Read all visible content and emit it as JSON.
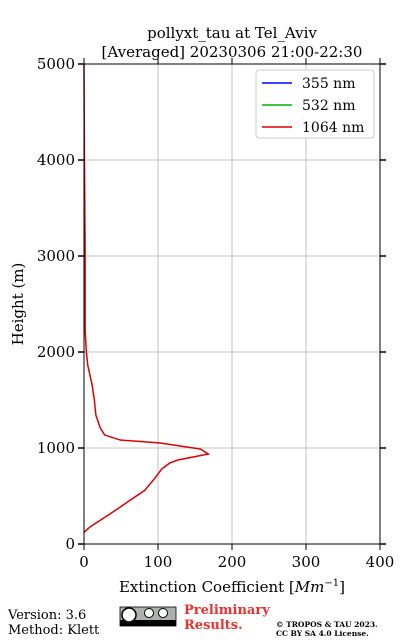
{
  "chart_data": {
    "type": "profile",
    "title": [
      "pollyxt_tau at Tel_Aviv",
      "[Averaged] 20230306 21:00-22:30"
    ],
    "xlabel": [
      "Extinction Coefficient [",
      "Mm",
      "−1",
      "]"
    ],
    "ylabel": "Height (m)",
    "y": [
      120,
      177,
      312,
      454,
      558,
      688,
      781,
      844,
      875,
      938,
      990,
      1052,
      1083,
      1135,
      1208,
      1344,
      1500,
      1656,
      1865,
      2020,
      2230,
      3060,
      4100,
      5000
    ],
    "series": [
      {
        "name": "355 nm",
        "color": "#0000ff",
        "values": [
          null,
          null,
          null,
          null,
          null,
          null,
          null,
          null,
          null,
          null,
          null,
          null,
          null,
          null,
          null,
          null,
          null,
          null,
          null,
          null,
          null,
          null,
          null,
          null
        ]
      },
      {
        "name": "532 nm",
        "color": "#00b400",
        "values": [
          null,
          null,
          null,
          null,
          null,
          null,
          null,
          null,
          null,
          null,
          null,
          null,
          null,
          null,
          null,
          null,
          null,
          null,
          null,
          null,
          null,
          null,
          null,
          null
        ]
      },
      {
        "name": "1064 nm",
        "color": "#e00000",
        "values": [
          0,
          8,
          35,
          62,
          82,
          96,
          105,
          116,
          127,
          168,
          157,
          103,
          49,
          28,
          22,
          16,
          14,
          11,
          5,
          3,
          1.5,
          1.5,
          0.5,
          0
        ]
      }
    ],
    "xlim": [
      0,
      400
    ],
    "xticks": [
      0,
      100,
      200,
      300,
      400
    ],
    "ylim": [
      0,
      5000
    ],
    "yticks": [
      0,
      1000,
      2000,
      3000,
      4000,
      5000
    ],
    "grid": true,
    "legend": "upper right",
    "footer": {
      "version": "Version: 3.6",
      "method": "Method: Klett",
      "preliminary": [
        "Preliminary",
        "Results."
      ],
      "copyright": [
        "© TROPOS & TAU 2023.",
        "CC BY SA 4.0 License."
      ]
    }
  }
}
